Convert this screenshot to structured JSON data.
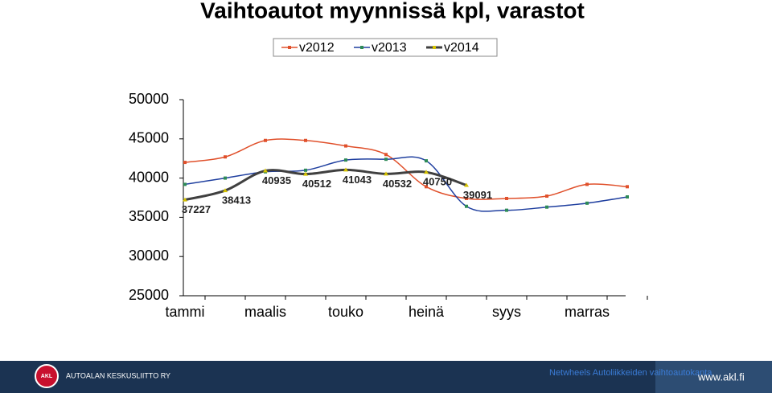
{
  "chart_data": {
    "type": "line",
    "title": "Vaihtoautot myynnissä kpl, varastot",
    "categories": [
      "tammi",
      null,
      "maalis",
      null,
      "touko",
      null,
      "heinä",
      null,
      "syys",
      null,
      "marras",
      null
    ],
    "series": [
      {
        "name": "v2012",
        "color": "#e0502b",
        "marker_color": "#e0502b",
        "values": [
          42000,
          42700,
          44800,
          44800,
          44100,
          43000,
          38900,
          37400,
          37400,
          37700,
          39200,
          38900
        ]
      },
      {
        "name": "v2013",
        "color": "#1f3f9f",
        "marker_color": "#2e8b57",
        "values": [
          39200,
          40000,
          40800,
          41000,
          42300,
          42400,
          42200,
          36400,
          35900,
          36300,
          36800,
          37600
        ]
      },
      {
        "name": "v2014",
        "color": "#404040",
        "marker_color": "#d4c200",
        "values": [
          37227,
          38413,
          40935,
          40512,
          41043,
          40532,
          40750,
          39091,
          null,
          null,
          null,
          null
        ],
        "data_labels": true
      }
    ],
    "ylim": [
      25000,
      50000
    ],
    "yticks": [
      25000,
      30000,
      35000,
      40000,
      45000,
      50000
    ],
    "grid": false,
    "smooth": true,
    "legend": "top"
  },
  "footer": {
    "organization": "AUTOALAN KESKUSLIITTO RY",
    "logo": "AKL",
    "source": "Netwheels Autoliikkeiden vaihtoautokanta",
    "url": "www.akl.fi"
  }
}
